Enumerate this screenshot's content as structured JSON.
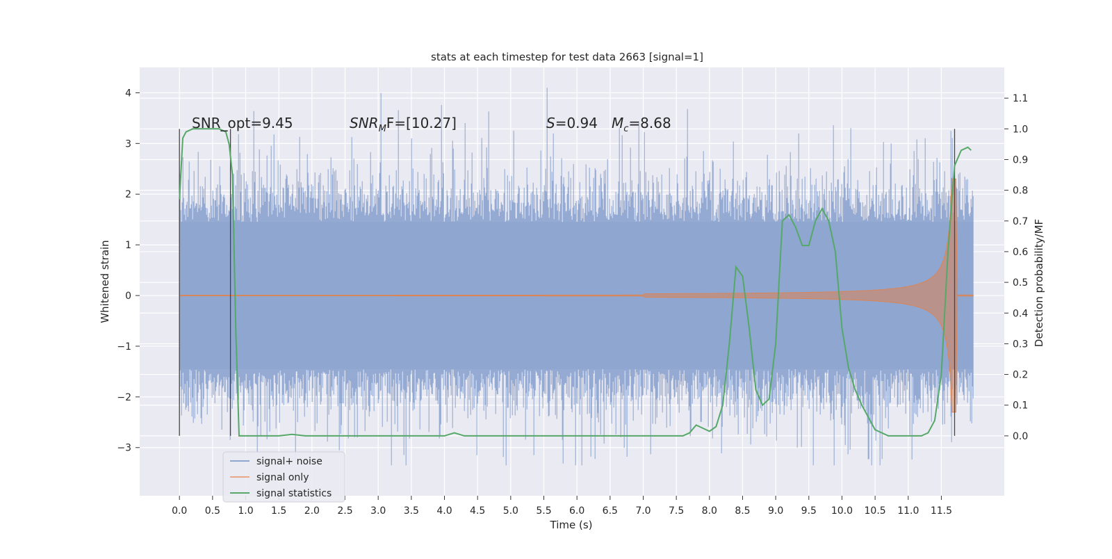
{
  "chart_data": {
    "type": "line",
    "title": "stats at each timestep for test data 2663 [signal=1]",
    "xlabel": "Time (s)",
    "ylabel_left": "Whitened strain",
    "ylabel_right": "Detection probability/MF",
    "xlim": [
      -0.6,
      12.45
    ],
    "ylim_left": [
      -3.95,
      4.5
    ],
    "ylim_right": [
      -0.195,
      1.2
    ],
    "x_ticks": [
      "0.0",
      "0.5",
      "1.0",
      "1.5",
      "2.0",
      "2.5",
      "3.0",
      "3.5",
      "4.0",
      "4.5",
      "5.0",
      "5.5",
      "6.0",
      "6.5",
      "7.0",
      "7.5",
      "8.0",
      "8.5",
      "9.0",
      "9.5",
      "10.0",
      "10.5",
      "11.0",
      "11.5"
    ],
    "y_ticks_left": [
      "−3",
      "−2",
      "−1",
      "0",
      "1",
      "2",
      "3",
      "4"
    ],
    "y_ticks_right": [
      "0.0",
      "0.1",
      "0.2",
      "0.3",
      "0.4",
      "0.5",
      "0.6",
      "0.7",
      "0.8",
      "0.9",
      "1.0",
      "1.1"
    ],
    "grid": true,
    "legend_position": "lower-left",
    "annotations": {
      "snr_opt": "SNR_opt=9.45",
      "snr_mf_prefix": "SNR",
      "snr_mf_sub": "M",
      "snr_mf_rest": "F=[10.27]",
      "s_prefix": "S",
      "s_rest": "=0.94",
      "mc_prefix": "M",
      "mc_sub": "c",
      "mc_rest": "=8.68"
    },
    "vlines_x": [
      0.0,
      0.77,
      11.7
    ],
    "series": [
      {
        "name": "signal+ noise",
        "axis": "left",
        "color": "#8fa6d0",
        "envelope_core": 1.45,
        "peak_max": 4.1,
        "x_range": [
          0.0,
          11.98
        ]
      },
      {
        "name": "signal only",
        "axis": "left",
        "color": "#dd8452",
        "amplitude_start": 0.01,
        "amplitude_end": 2.3,
        "merger_x": 11.72
      },
      {
        "name": "signal statistics",
        "axis": "right",
        "color": "#55a868",
        "x": [
          0.0,
          0.05,
          0.1,
          0.2,
          0.3,
          0.4,
          0.5,
          0.6,
          0.7,
          0.75,
          0.8,
          0.85,
          0.9,
          0.95,
          1.0,
          1.1,
          1.3,
          1.5,
          1.7,
          1.9,
          2.5,
          3.0,
          3.5,
          4.0,
          4.15,
          4.3,
          4.5,
          5.0,
          5.5,
          6.0,
          6.5,
          7.0,
          7.4,
          7.6,
          7.7,
          7.8,
          7.9,
          8.0,
          8.1,
          8.2,
          8.3,
          8.4,
          8.5,
          8.6,
          8.7,
          8.8,
          8.9,
          9.0,
          9.1,
          9.2,
          9.3,
          9.4,
          9.5,
          9.6,
          9.7,
          9.8,
          9.9,
          10.0,
          10.1,
          10.2,
          10.3,
          10.4,
          10.5,
          10.7,
          11.0,
          11.2,
          11.3,
          11.4,
          11.5,
          11.6,
          11.7,
          11.8,
          11.9,
          11.95
        ],
        "y": [
          0.77,
          0.97,
          0.99,
          1.0,
          1.0,
          1.0,
          1.0,
          1.0,
          0.99,
          0.95,
          0.85,
          0.35,
          0.0,
          0.0,
          0.0,
          0.0,
          0.0,
          0.0,
          0.005,
          0.0,
          0.0,
          0.0,
          0.0,
          0.0,
          0.01,
          0.0,
          0.0,
          0.0,
          0.0,
          0.0,
          0.0,
          0.0,
          0.0,
          0.0,
          0.01,
          0.035,
          0.025,
          0.015,
          0.03,
          0.1,
          0.3,
          0.55,
          0.52,
          0.35,
          0.15,
          0.1,
          0.12,
          0.3,
          0.7,
          0.72,
          0.68,
          0.62,
          0.62,
          0.7,
          0.74,
          0.7,
          0.6,
          0.35,
          0.22,
          0.15,
          0.1,
          0.06,
          0.02,
          0.0,
          0.0,
          0.0,
          0.01,
          0.05,
          0.2,
          0.6,
          0.88,
          0.93,
          0.94,
          0.93
        ]
      }
    ]
  }
}
